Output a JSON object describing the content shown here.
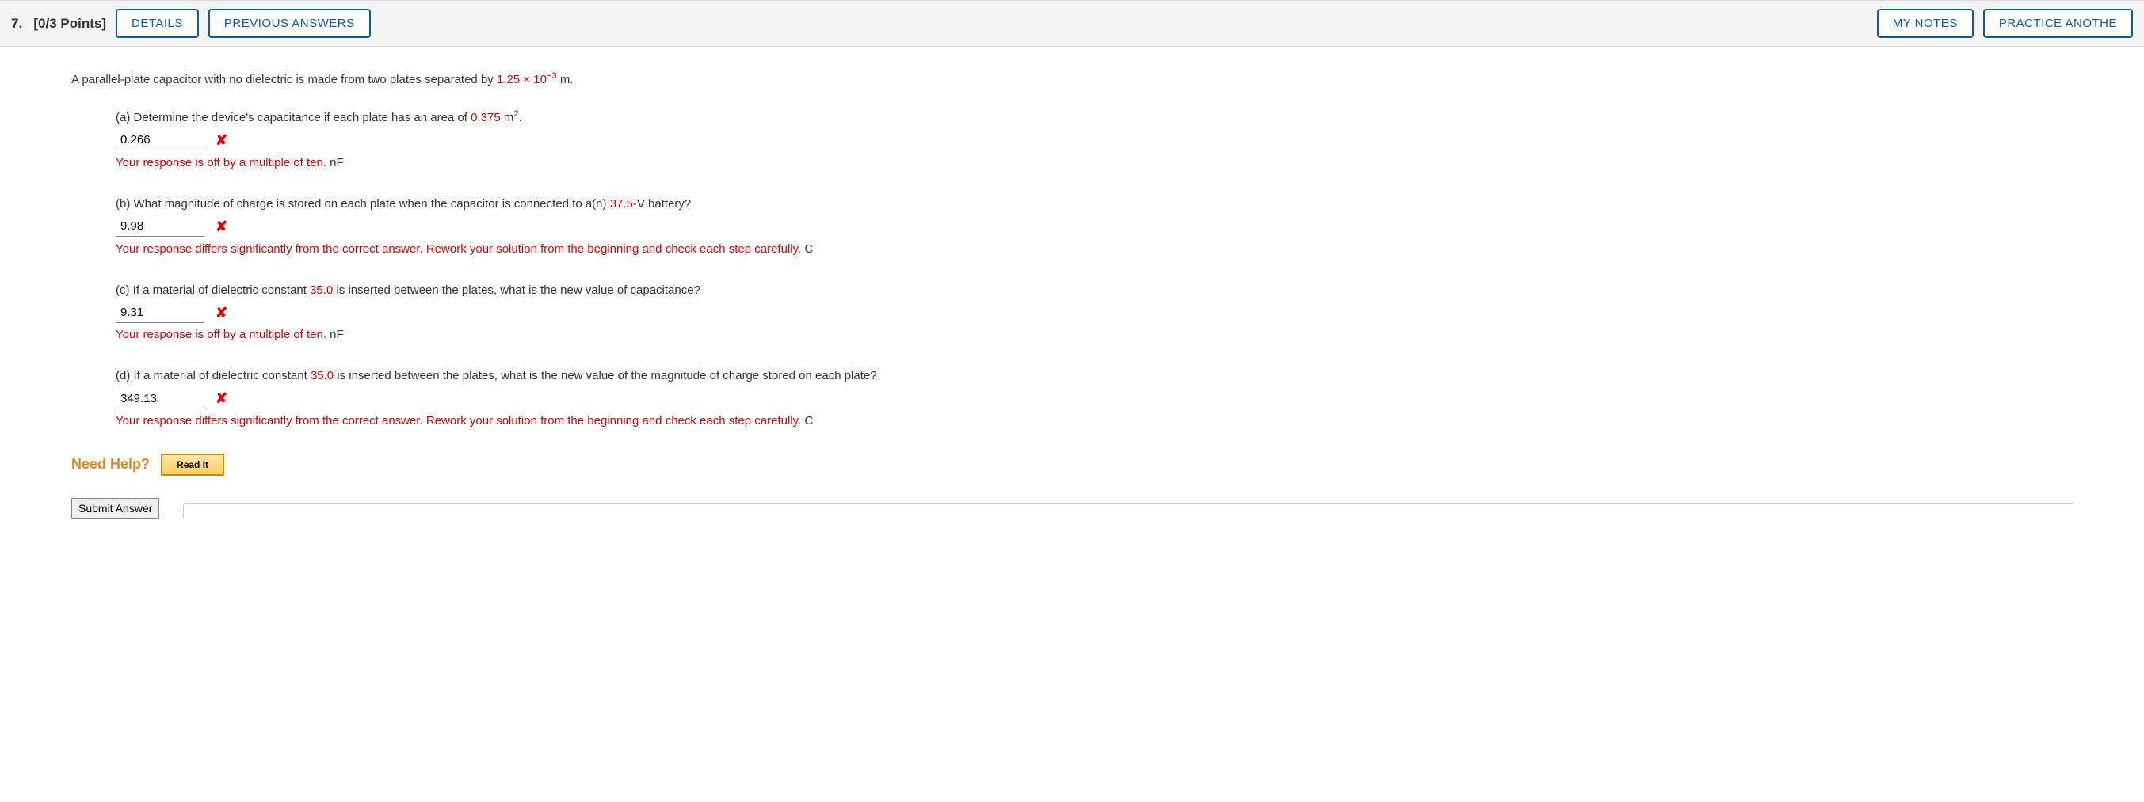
{
  "header": {
    "question_number": "7.",
    "points": "[0/3 Points]",
    "details_label": "DETAILS",
    "previous_answers_label": "PREVIOUS ANSWERS",
    "my_notes_label": "MY NOTES",
    "practice_another_label": "PRACTICE ANOTHE"
  },
  "intro": {
    "text_before": "A parallel-plate capacitor with no dielectric is made from two plates separated by ",
    "separation_value": "1.25 × 10",
    "separation_exp": "−3",
    "text_after": " m."
  },
  "parts": {
    "a": {
      "label": "(a) Determine the device's capacitance if each plate has an area of ",
      "area_value": "0.375",
      "area_unit_base": " m",
      "area_unit_exp": "2",
      "after": ".",
      "answer_value": "0.266",
      "feedback": "Your response is off by a multiple of ten.",
      "unit": "nF"
    },
    "b": {
      "label_before": "(b) What magnitude of charge is stored on each plate when the capacitor is connected to a(n) ",
      "voltage_value": "37.5",
      "label_after": "-V battery?",
      "answer_value": "9.98",
      "feedback": "Your response differs significantly from the correct answer. Rework your solution from the beginning and check each step carefully.",
      "unit": "C"
    },
    "c": {
      "label_before": "(c) If a material of dielectric constant ",
      "k_value": "35.0",
      "label_after": " is inserted between the plates, what is the new value of capacitance?",
      "answer_value": "9.31",
      "feedback": "Your response is off by a multiple of ten.",
      "unit": "nF"
    },
    "d": {
      "label_before": "(d) If a material of dielectric constant ",
      "k_value": "35.0",
      "label_after": " is inserted between the plates, what is the new value of the magnitude of charge stored on each plate?",
      "answer_value": "349.13",
      "feedback": "Your response differs significantly from the correct answer. Rework your solution from the beginning and check each step carefully.",
      "unit": "C"
    }
  },
  "help": {
    "label": "Need Help?",
    "read_it": "Read It"
  },
  "submit": {
    "label": "Submit Answer"
  },
  "colors": {
    "outline_btn": "#0d5aa7",
    "red": "#d00000",
    "orange": "#e08a1e",
    "header_bg": "#f4f4f4"
  }
}
